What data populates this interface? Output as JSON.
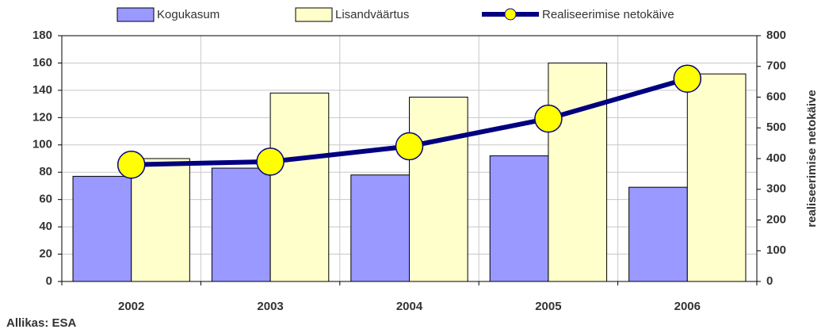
{
  "chart_data": {
    "type": "bar_line",
    "categories": [
      "2002",
      "2003",
      "2004",
      "2005",
      "2006"
    ],
    "series": [
      {
        "name": "Kogukasum",
        "color": "#9999ff",
        "values": [
          77,
          83,
          78,
          92,
          69
        ]
      },
      {
        "name": "Lisandväärtus",
        "color": "#ffffcc",
        "values": [
          90,
          138,
          135,
          160,
          152
        ]
      },
      {
        "name": "Realiseerimise netokäive",
        "color": "#000080",
        "marker_color": "#ffff00",
        "type": "line",
        "axis": "y2",
        "values": [
          380,
          390,
          440,
          530,
          660
        ]
      }
    ],
    "ylim": [
      0,
      180
    ],
    "yticks": [
      0,
      20,
      40,
      60,
      80,
      100,
      120,
      140,
      160,
      180
    ],
    "y2lim": [
      0,
      800
    ],
    "y2ticks": [
      0,
      100,
      200,
      300,
      400,
      500,
      600,
      700,
      800
    ],
    "y2label": "realiseerimise netokäive",
    "source": "Allikas: ESA",
    "grid": true,
    "legend": "top"
  }
}
